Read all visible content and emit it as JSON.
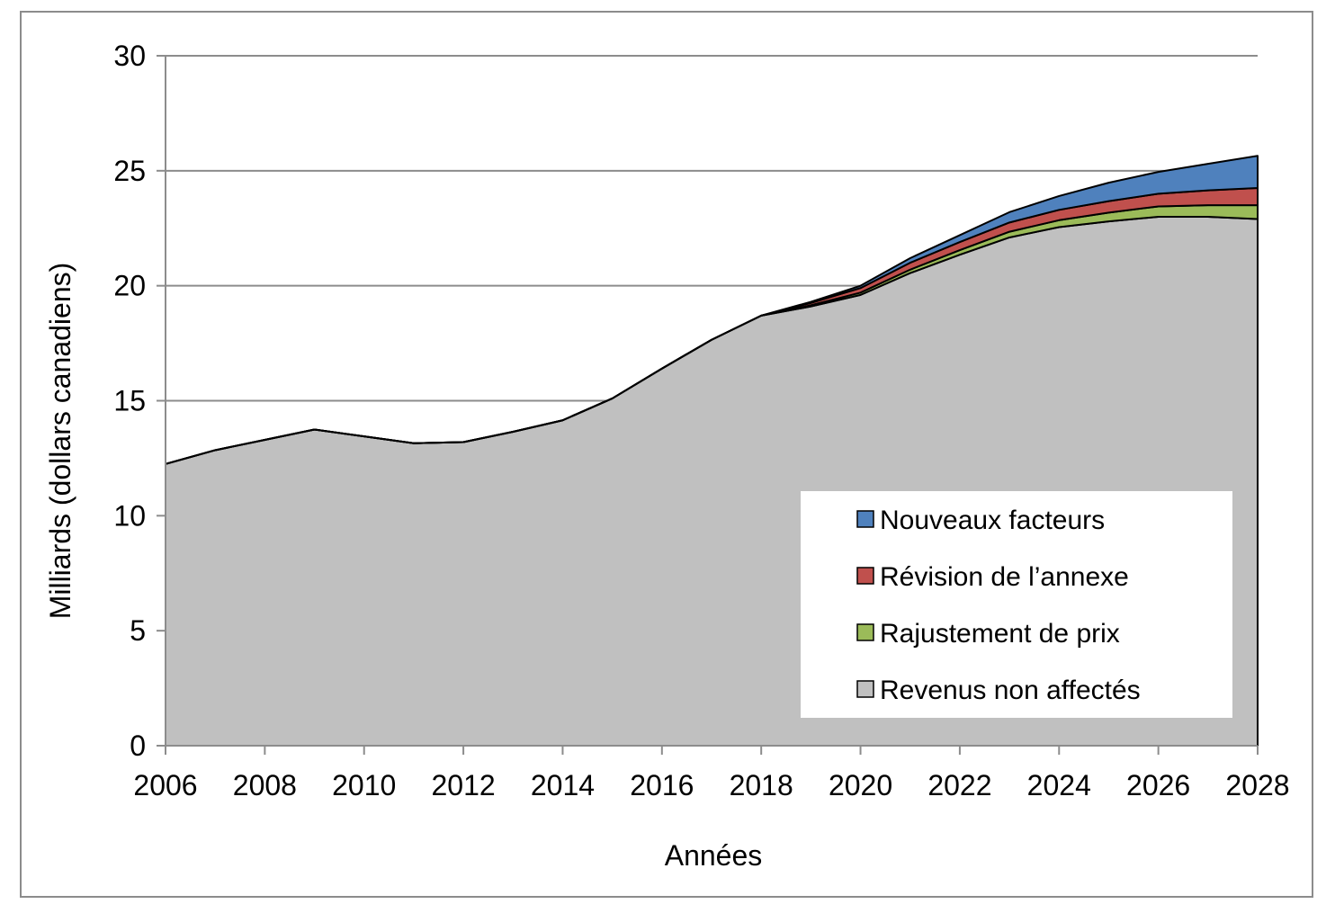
{
  "chart_data": {
    "type": "area",
    "stacked": true,
    "xlabel": "Années",
    "ylabel": "Milliards (dollars canadiens)",
    "ylim": [
      0,
      30
    ],
    "xlim": [
      2006,
      2028
    ],
    "y_ticks": [
      "0",
      "5",
      "10",
      "15",
      "20",
      "25",
      "30"
    ],
    "x_ticks": [
      "2006",
      "2008",
      "2010",
      "2012",
      "2014",
      "2016",
      "2018",
      "2020",
      "2022",
      "2024",
      "2026",
      "2028"
    ],
    "grid": "horizontal",
    "legend_position": "bottom-right",
    "x": [
      2006,
      2007,
      2008,
      2009,
      2010,
      2011,
      2012,
      2013,
      2014,
      2015,
      2016,
      2017,
      2018,
      2019,
      2020,
      2021,
      2022,
      2023,
      2024,
      2025,
      2026,
      2027,
      2028
    ],
    "series": [
      {
        "name": "Revenus non affectés",
        "color": "#c0c0c0",
        "values": [
          12.25,
          12.85,
          13.3,
          13.75,
          13.45,
          13.15,
          13.2,
          13.65,
          14.15,
          15.1,
          16.4,
          17.65,
          18.7,
          19.1,
          19.6,
          20.55,
          21.35,
          22.1,
          22.55,
          22.8,
          23.0,
          23.0,
          22.9
        ]
      },
      {
        "name": "Rajustement de prix",
        "color": "#9bbb59",
        "values": [
          0,
          0,
          0,
          0,
          0,
          0,
          0,
          0,
          0,
          0,
          0,
          0,
          0,
          0.05,
          0.1,
          0.15,
          0.2,
          0.25,
          0.3,
          0.38,
          0.45,
          0.5,
          0.6
        ]
      },
      {
        "name": "Révision de l’annexe",
        "color": "#c0504d",
        "values": [
          0,
          0,
          0,
          0,
          0,
          0,
          0,
          0,
          0,
          0,
          0,
          0,
          0,
          0.1,
          0.2,
          0.3,
          0.35,
          0.4,
          0.45,
          0.5,
          0.55,
          0.65,
          0.75
        ]
      },
      {
        "name": "Nouveaux facteurs",
        "color": "#4f81bd",
        "values": [
          0,
          0,
          0,
          0,
          0,
          0,
          0,
          0,
          0,
          0,
          0,
          0,
          0,
          0.05,
          0.1,
          0.2,
          0.3,
          0.45,
          0.6,
          0.8,
          0.95,
          1.15,
          1.4
        ]
      }
    ]
  }
}
